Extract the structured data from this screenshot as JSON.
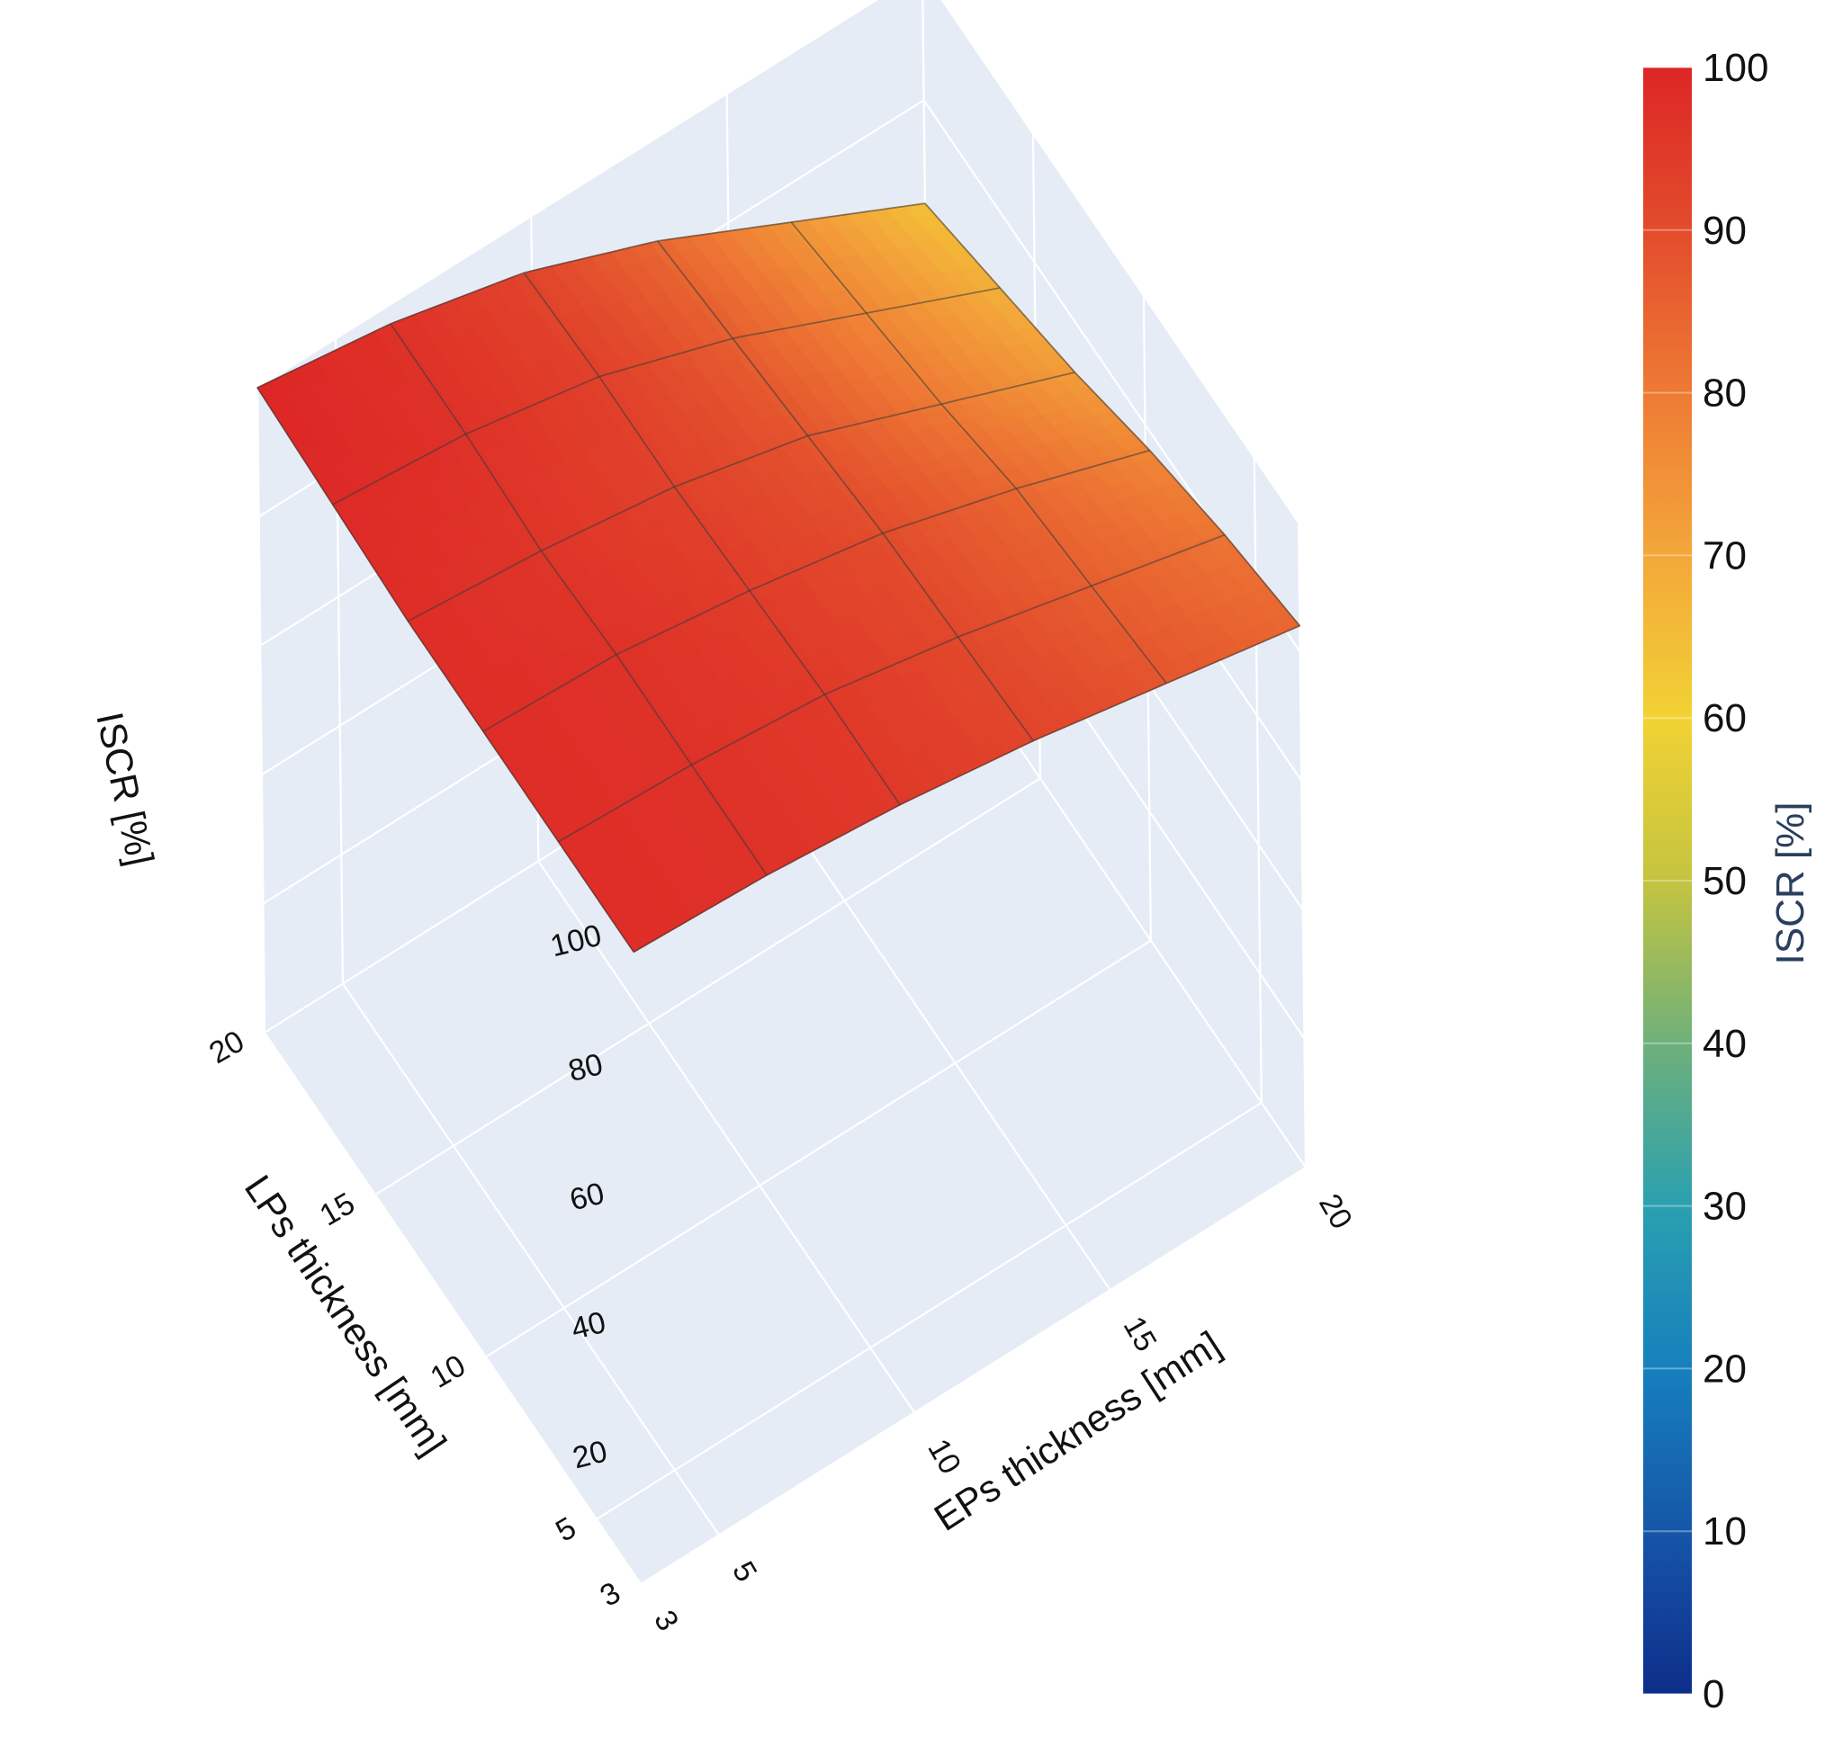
{
  "chart_data": {
    "type": "surface",
    "x_axis": {
      "label": "EPs thickness [mm]",
      "ticks": [
        3,
        5,
        10,
        15,
        20
      ],
      "range": [
        3,
        20
      ]
    },
    "y_axis": {
      "label": "LPs thickness [mm]",
      "ticks": [
        3,
        5,
        10,
        15,
        20
      ],
      "range": [
        3,
        20
      ]
    },
    "z_axis": {
      "label": "ISCR [%]",
      "ticks": [
        20,
        40,
        60,
        80,
        100
      ],
      "range": [
        0,
        100
      ]
    },
    "surface": {
      "x": [
        3,
        6.4,
        9.8,
        13.2,
        16.6,
        20
      ],
      "y": [
        3,
        6.4,
        9.8,
        13.2,
        16.6,
        20
      ],
      "z": [
        [
          98,
          97,
          95,
          92,
          88,
          84
        ],
        [
          98,
          97,
          95,
          91,
          86,
          81
        ],
        [
          98,
          97,
          94,
          90,
          84,
          77
        ],
        [
          98,
          96,
          93,
          88,
          80,
          72
        ],
        [
          99,
          97,
          93,
          86,
          77,
          68
        ],
        [
          100,
          97,
          92,
          84,
          74,
          64
        ]
      ]
    },
    "colorbar": {
      "title": "ISCR [%]",
      "min": 0,
      "max": 100,
      "ticks": [
        0,
        10,
        20,
        30,
        40,
        50,
        60,
        70,
        80,
        90,
        100
      ],
      "colors": [
        "#0d2e8a",
        "#1556a8",
        "#1680bd",
        "#2aa0b0",
        "#6fb07a",
        "#c4c440",
        "#f2d234",
        "#f3a73a",
        "#ee7a34",
        "#e24c2c",
        "#dd2626"
      ]
    },
    "colors": {
      "scene_background": "#e5ecf6",
      "grid": "#ffffff",
      "mesh": "#3a3a3a"
    }
  }
}
